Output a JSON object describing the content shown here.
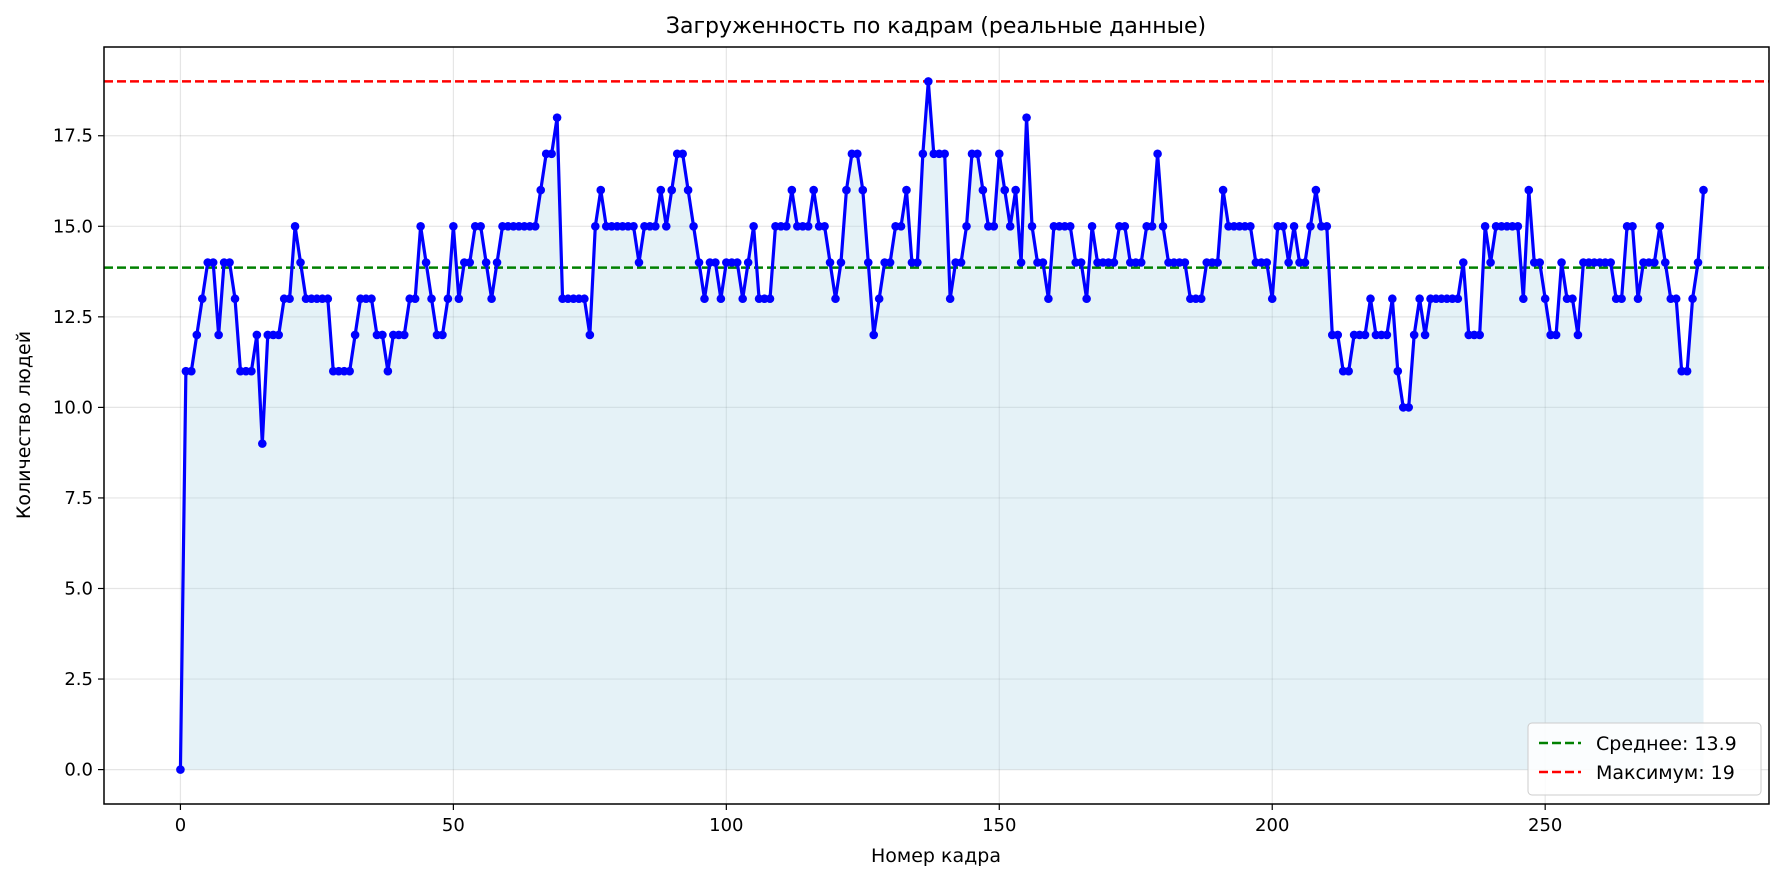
{
  "chart_data": {
    "type": "line",
    "title": "Загруженность по кадрам (реальные данные)",
    "xlabel": "Номер кадра",
    "ylabel": "Количество людей",
    "xlim": [
      -14,
      291
    ],
    "ylim": [
      -0.95,
      19.95
    ],
    "xticks": [
      0,
      50,
      100,
      150,
      200,
      250
    ],
    "xtick_labels": [
      "0",
      "50",
      "100",
      "150",
      "200",
      "250"
    ],
    "yticks": [
      0,
      2.5,
      5,
      7.5,
      10,
      12.5,
      15,
      17.5
    ],
    "ytick_labels": [
      "0.0",
      "2.5",
      "5.0",
      "7.5",
      "10.0",
      "12.5",
      "15.0",
      "17.5"
    ],
    "grid": true,
    "legend_position": "lower-right",
    "colors": {
      "line": "#0000ff",
      "fill": "#add8e6",
      "mean": "#008000",
      "max": "#ff0000"
    },
    "series": [
      {
        "x_start": 0,
        "values": [
          0,
          11,
          11,
          12,
          13,
          14,
          14,
          12,
          14,
          14,
          13,
          11,
          11,
          11,
          12,
          9,
          12,
          12,
          12,
          13,
          13,
          15,
          14,
          13,
          13,
          13,
          13,
          13,
          11,
          11,
          11,
          11,
          12,
          13,
          13,
          13,
          12,
          12,
          11,
          12,
          12,
          12,
          13,
          13,
          15,
          14,
          13,
          12,
          12,
          13,
          15,
          13,
          14,
          14,
          15,
          15,
          14,
          13,
          14,
          15,
          15,
          15,
          15,
          15,
          15,
          15,
          16,
          17,
          17,
          18,
          13,
          13,
          13,
          13,
          13,
          12,
          15,
          16,
          15,
          15,
          15,
          15,
          15,
          15,
          14,
          15,
          15,
          15,
          16,
          15,
          16,
          17,
          17,
          16,
          15,
          14,
          13,
          14,
          14,
          13,
          14,
          14,
          14,
          13,
          14,
          15,
          13,
          13,
          13,
          15,
          15,
          15,
          16,
          15,
          15,
          15,
          16,
          15,
          15,
          14,
          13,
          14,
          16,
          17,
          17,
          16,
          14,
          12,
          13,
          14,
          14,
          15,
          15,
          16,
          14,
          14,
          17,
          19,
          17,
          17,
          17,
          13,
          14,
          14,
          15,
          17,
          17,
          16,
          15,
          15,
          17,
          16,
          15,
          16,
          14,
          18,
          15,
          14,
          14,
          13,
          15,
          15,
          15,
          15,
          14,
          14,
          13,
          15,
          14,
          14,
          14,
          14,
          15,
          15,
          14,
          14,
          14,
          15,
          15,
          17,
          15,
          14,
          14,
          14,
          14,
          13,
          13,
          13,
          14,
          14,
          14,
          16,
          15,
          15,
          15,
          15,
          15,
          14,
          14,
          14,
          13,
          15,
          15,
          14,
          15,
          14,
          14,
          15,
          16,
          15,
          15,
          12,
          12,
          11,
          11,
          12,
          12,
          12,
          13,
          12,
          12,
          12,
          13,
          11,
          10,
          10,
          12,
          13,
          12,
          13,
          13,
          13,
          13,
          13,
          13,
          14,
          12,
          12,
          12,
          15,
          14,
          15,
          15,
          15,
          15,
          15,
          13,
          16,
          14,
          14,
          13,
          12,
          12,
          14,
          13,
          13,
          12,
          14,
          14,
          14,
          14,
          14,
          14,
          13,
          13,
          15,
          15,
          13,
          14,
          14,
          14,
          15,
          14,
          13,
          13,
          11,
          11,
          13,
          14,
          16
        ]
      }
    ],
    "reference_lines": [
      {
        "name": "Среднее: 13.9",
        "value": 13.86,
        "color": "#008000"
      },
      {
        "name": "Максимум: 19",
        "value": 19,
        "color": "#ff0000"
      }
    ]
  }
}
